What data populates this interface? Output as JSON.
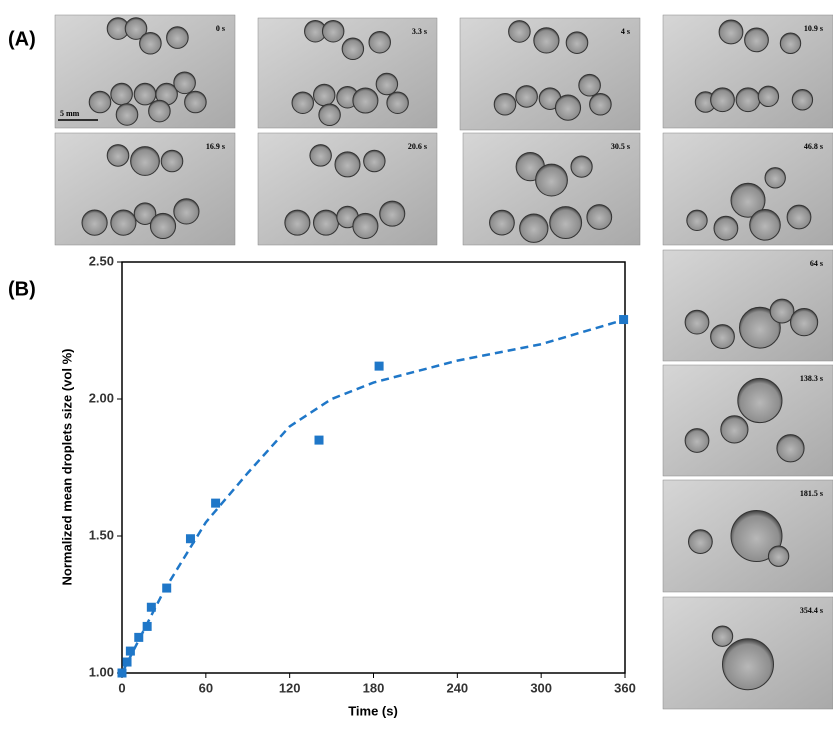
{
  "panel_labels": [
    "(A)",
    "(B)"
  ],
  "scale_bar": "5 mm",
  "images": [
    "0 s",
    "3.3 s",
    "4 s",
    "10.9 s",
    "16.9 s",
    "20.6 s",
    "30.5 s",
    "46.8 s",
    "64 s",
    "138.3 s",
    "181.5 s",
    "354.4 s"
  ],
  "chart_data": {
    "type": "scatter",
    "x_label": "Time (s)",
    "y_label": "Normalized mean droplets size (vol %)",
    "x": [
      0,
      3.6,
      6,
      12,
      18,
      21,
      32,
      49,
      67,
      141,
      184,
      359
    ],
    "series": [
      {
        "color": "#1f77c8",
        "values": [
          1.0,
          1.04,
          1.08,
          1.13,
          1.17,
          1.24,
          1.31,
          1.49,
          1.62,
          1.85,
          2.12,
          2.29
        ]
      }
    ],
    "trend": {
      "color": "#1f77c8",
      "x": [
        0,
        30,
        60,
        90,
        120,
        150,
        180,
        240,
        300,
        360
      ],
      "values": [
        1.0,
        1.3,
        1.55,
        1.73,
        1.9,
        2.0,
        2.06,
        2.14,
        2.2,
        2.29
      ]
    },
    "xlim": [
      0,
      360
    ],
    "ylim": [
      1.0,
      2.5
    ],
    "xticks": [
      0,
      60,
      120,
      180,
      240,
      300,
      360
    ],
    "yticks": [
      {
        "value": 1.0,
        "label": "1.00"
      },
      {
        "value": 1.5,
        "label": "1.50"
      },
      {
        "value": 2.0,
        "label": "2.00"
      },
      {
        "value": 2.5,
        "label": "2.50"
      }
    ]
  }
}
